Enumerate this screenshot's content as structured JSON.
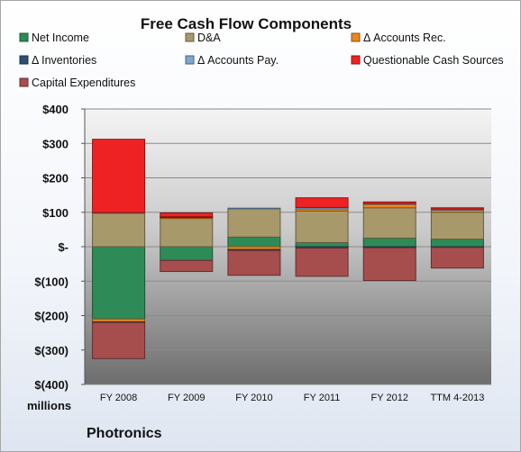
{
  "chart_data": {
    "type": "bar",
    "stacked": true,
    "title": "Free Cash Flow Components",
    "unit_label": "millions",
    "company": "Photronics",
    "categories": [
      "FY 2008",
      "FY 2009",
      "FY 2010",
      "FY 2011",
      "FY 2012",
      "TTM 4-2013"
    ],
    "ylim": [
      -400,
      400
    ],
    "yticks": [
      {
        "value": 400,
        "label": "$400"
      },
      {
        "value": 300,
        "label": "$300"
      },
      {
        "value": 200,
        "label": "$200"
      },
      {
        "value": 100,
        "label": "$100"
      },
      {
        "value": 0,
        "label": "$-"
      },
      {
        "value": -100,
        "label": "$(100)"
      },
      {
        "value": -200,
        "label": "$(200)"
      },
      {
        "value": -300,
        "label": "$(300)"
      },
      {
        "value": -400,
        "label": "$(400)"
      }
    ],
    "grid": true,
    "legend_position": "top",
    "series": [
      {
        "name": "Net Income",
        "color": "#2e8b57",
        "values": [
          -210,
          -38,
          28,
          12,
          25,
          22
        ]
      },
      {
        "name": "D&A",
        "color": "#a8996a",
        "values": [
          97,
          82,
          82,
          92,
          88,
          78
        ]
      },
      {
        "name": "Δ Accounts Rec.",
        "color": "#e8871e",
        "values": [
          -8,
          4,
          -8,
          6,
          10,
          6
        ]
      },
      {
        "name": "Δ Inventories",
        "color": "#2f4f70",
        "values": [
          -2,
          1,
          -3,
          -4,
          -3,
          -2
        ]
      },
      {
        "name": "Δ Accounts Pay.",
        "color": "#7ea6cf",
        "values": [
          2,
          -2,
          2,
          4,
          2,
          3
        ]
      },
      {
        "name": "Questionable Cash Sources",
        "color": "#ee2222",
        "values": [
          213,
          11,
          0,
          28,
          5,
          4
        ]
      },
      {
        "name": "Capital Expenditures",
        "color": "#a64d4d",
        "values": [
          -105,
          -32,
          -72,
          -82,
          -95,
          -60
        ]
      }
    ]
  }
}
